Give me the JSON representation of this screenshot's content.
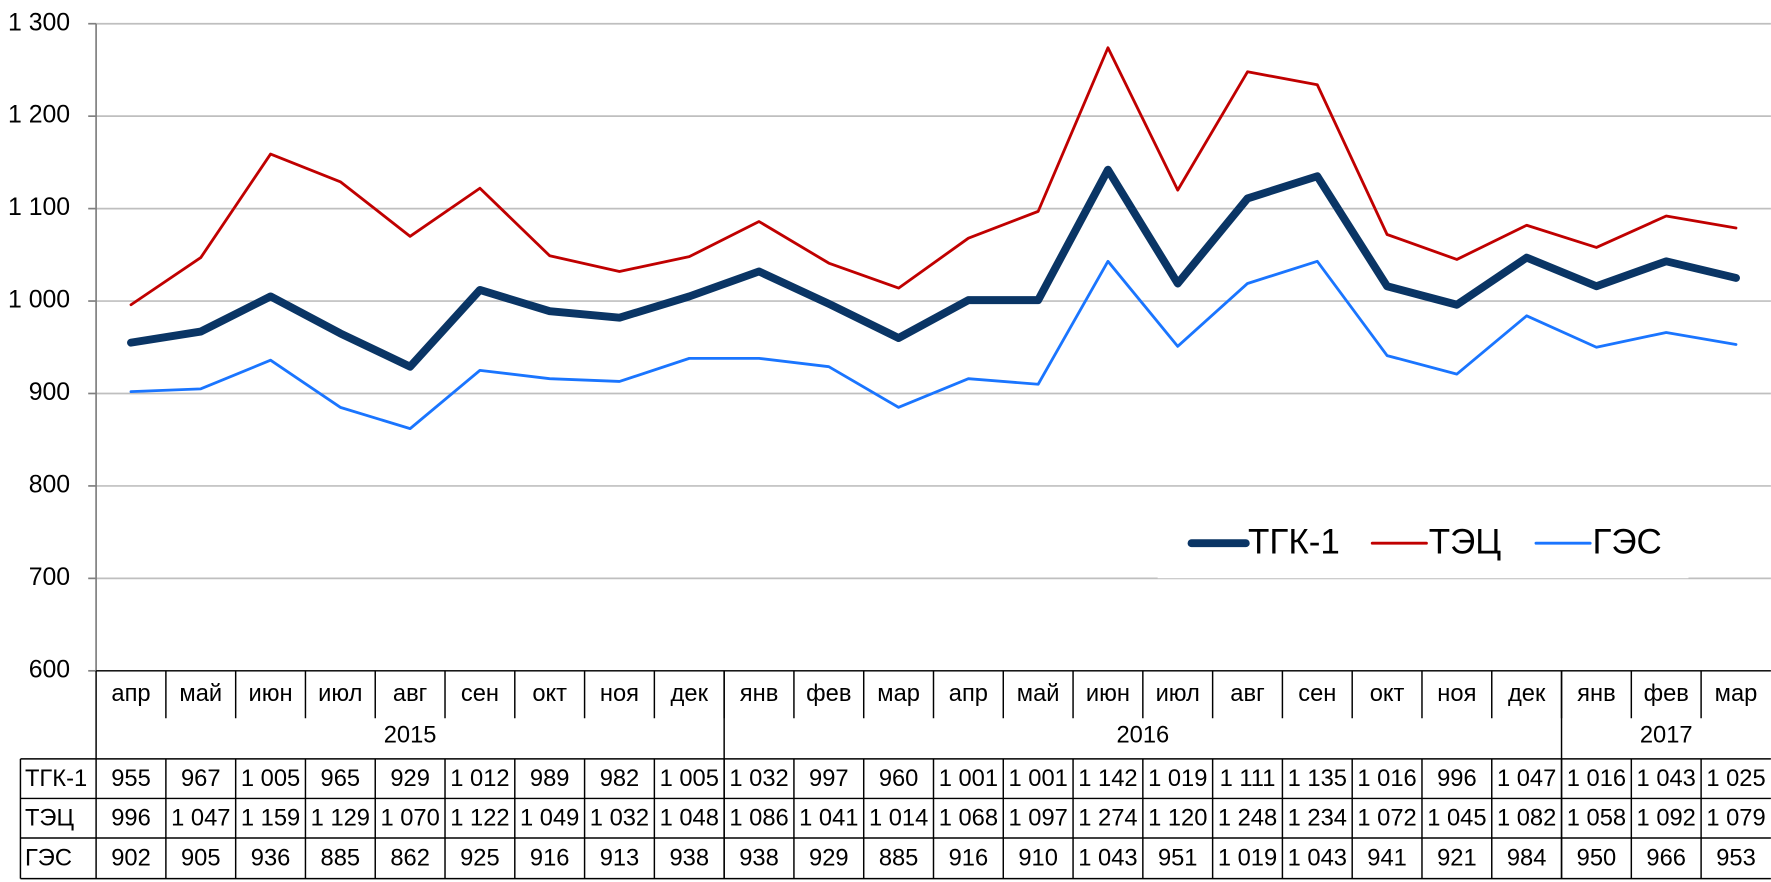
{
  "chart_data": {
    "type": "line",
    "categories": [
      "апр",
      "май",
      "июн",
      "июл",
      "авг",
      "сен",
      "окт",
      "ноя",
      "дек",
      "янв",
      "фев",
      "мар",
      "апр",
      "май",
      "июн",
      "июл",
      "авг",
      "сен",
      "окт",
      "ноя",
      "дек",
      "янв",
      "фев",
      "мар"
    ],
    "x_groups": [
      {
        "label": "2015",
        "count": 9
      },
      {
        "label": "2016",
        "count": 12
      },
      {
        "label": "2017",
        "count": 3
      }
    ],
    "series": [
      {
        "name": "ТГК-1",
        "color": "#0a3565",
        "values": [
          955,
          967,
          1005,
          965,
          929,
          1012,
          989,
          982,
          1005,
          1032,
          997,
          960,
          1001,
          1001,
          1142,
          1019,
          1111,
          1135,
          1016,
          996,
          1047,
          1016,
          1043,
          1025
        ],
        "value_labels": [
          "955",
          "967",
          "1 005",
          "965",
          "929",
          "1 012",
          "989",
          "982",
          "1 005",
          "1 032",
          "997",
          "960",
          "1 001",
          "1 001",
          "1 142",
          "1 019",
          "1 111",
          "1 135",
          "1 016",
          "996",
          "1 047",
          "1 016",
          "1 043",
          "1 025"
        ]
      },
      {
        "name": "ТЭЦ",
        "color": "#c00000",
        "values": [
          996,
          1047,
          1159,
          1129,
          1070,
          1122,
          1049,
          1032,
          1048,
          1086,
          1041,
          1014,
          1068,
          1097,
          1274,
          1120,
          1248,
          1234,
          1072,
          1045,
          1082,
          1058,
          1092,
          1079
        ],
        "value_labels": [
          "996",
          "1 047",
          "1 159",
          "1 129",
          "1 070",
          "1 122",
          "1 049",
          "1 032",
          "1 048",
          "1 086",
          "1 041",
          "1 014",
          "1 068",
          "1 097",
          "1 274",
          "1 120",
          "1 248",
          "1 234",
          "1 072",
          "1 045",
          "1 082",
          "1 058",
          "1 092",
          "1 079"
        ]
      },
      {
        "name": "ГЭС",
        "color": "#1a75ff",
        "values": [
          902,
          905,
          936,
          885,
          862,
          925,
          916,
          913,
          938,
          938,
          929,
          885,
          916,
          910,
          1043,
          951,
          1019,
          1043,
          941,
          921,
          984,
          950,
          966,
          953
        ],
        "value_labels": [
          "902",
          "905",
          "936",
          "885",
          "862",
          "925",
          "916",
          "913",
          "938",
          "938",
          "929",
          "885",
          "916",
          "910",
          "1 043",
          "951",
          "1 019",
          "1 043",
          "941",
          "921",
          "984",
          "950",
          "966",
          "953"
        ]
      }
    ],
    "ylim": [
      600,
      1300
    ],
    "yticks": [
      600,
      700,
      800,
      900,
      {
        "value": 1000,
        "label": "1 000"
      },
      {
        "value": 1100,
        "label": "1 100"
      },
      {
        "value": 1200,
        "label": "1 200"
      },
      {
        "value": 1300,
        "label": "1 300"
      }
    ],
    "grid": true,
    "legend": "right"
  }
}
